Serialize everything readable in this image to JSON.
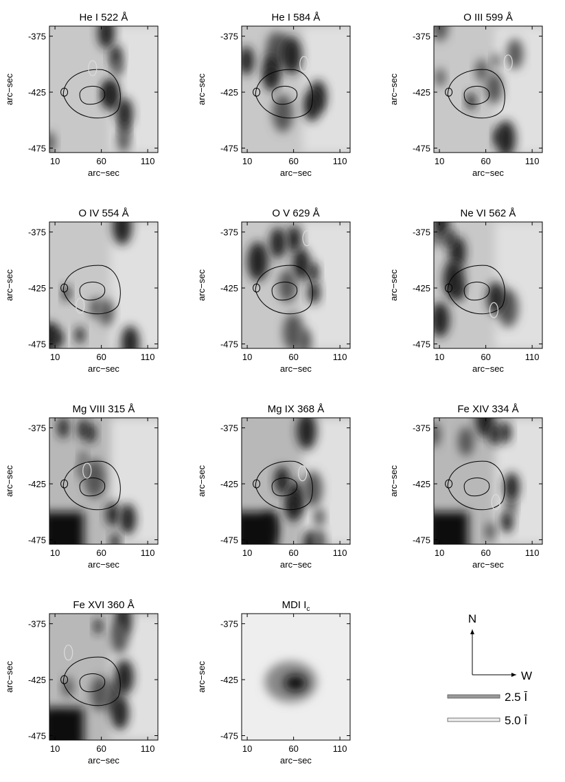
{
  "xlim": [
    4,
    121
  ],
  "ylim": [
    -479,
    -366
  ],
  "xticks": [
    10,
    60,
    110
  ],
  "yticks": [
    -375,
    -425,
    -475
  ],
  "axis_label": "arc−sec",
  "panels": [
    {
      "title": "He I 522 Å"
    },
    {
      "title": "He I 584 Å"
    },
    {
      "title": "O III 599 Å"
    },
    {
      "title": "O IV 554 Å"
    },
    {
      "title": "O V 629 Å"
    },
    {
      "title": "Ne VI 562 Å"
    },
    {
      "title": "Mg VIII 315 Å"
    },
    {
      "title": "Mg IX 368 Å"
    },
    {
      "title": "Fe XIV 334 Å"
    },
    {
      "title": "Fe XVI 360 Å"
    },
    {
      "title": "MDI I",
      "subscript": "c"
    }
  ],
  "compass": {
    "north": "N",
    "west": "W"
  },
  "legend": [
    "2.5 Ī",
    "5.0 Ī"
  ]
}
